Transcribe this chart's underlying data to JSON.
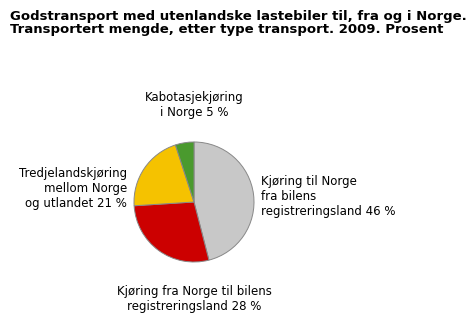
{
  "title_line1": "Godstransport med utenlandske lastebiler til, fra og i Norge.",
  "title_line2": "Transportert mengde, etter type transport. 2009. Prosent",
  "slices": [
    46,
    28,
    21,
    5
  ],
  "colors": [
    "#c8c8c8",
    "#cc0000",
    "#f5c200",
    "#4a9a2e"
  ],
  "start_angle": 90,
  "title_fontsize": 9.5,
  "label_fontsize": 8.5,
  "background_color": "#ffffff",
  "wedge_edgecolor": "#888888",
  "wedge_linewidth": 0.7
}
